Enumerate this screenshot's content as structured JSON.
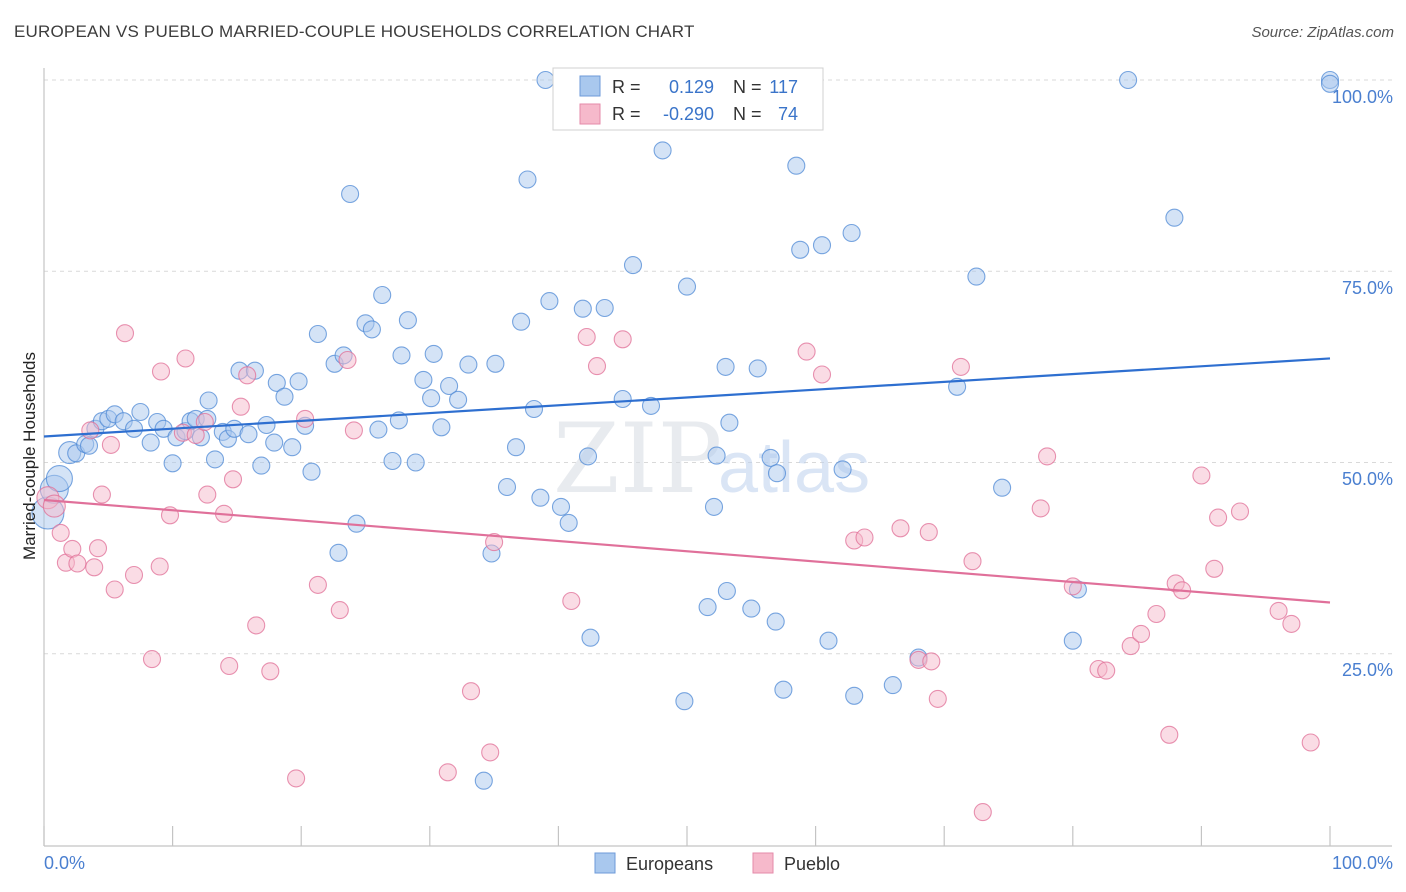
{
  "header": {
    "title": "EUROPEAN VS PUEBLO MARRIED-COUPLE HOUSEHOLDS CORRELATION CHART",
    "source": "Source: ZipAtlas.com"
  },
  "watermark": {
    "zip": "ZIP",
    "atlas": "atlas"
  },
  "legend": {
    "r_label": "R =",
    "n_label": "N =",
    "rows": [
      {
        "series": "Europeans",
        "r": "0.129",
        "n": "117",
        "color": "#a9c8ee"
      },
      {
        "series": "Pueblo",
        "r": "-0.290",
        "n": "74",
        "color": "#f6b9cb"
      }
    ]
  },
  "chart_data": {
    "type": "scatter",
    "title": "EUROPEAN VS PUEBLO MARRIED-COUPLE HOUSEHOLDS CORRELATION CHART",
    "xlabel": "",
    "ylabel": "Married-couple Households",
    "xlim": [
      0,
      100
    ],
    "ylim": [
      0,
      100
    ],
    "x_tick_labels": [
      "0.0%",
      "100.0%"
    ],
    "y_ticks": [
      25,
      50,
      75,
      100
    ],
    "y_tick_labels": [
      "25.0%",
      "50.0%",
      "75.0%",
      "100.0%"
    ],
    "grid": true,
    "legend_position": "bottom-center",
    "series": [
      {
        "name": "Europeans",
        "color": "#4f8ad6",
        "fill": "#a9c8ee",
        "trend": {
          "start": [
            0,
            53.4
          ],
          "end": [
            100,
            63.6
          ]
        },
        "points": [
          [
            0.3,
            43.4
          ],
          [
            0.8,
            46.5
          ],
          [
            1.2,
            47.9
          ],
          [
            2.0,
            51.3
          ],
          [
            2.5,
            51.2
          ],
          [
            3.2,
            52.4
          ],
          [
            3.5,
            52.2
          ],
          [
            4.0,
            54.4
          ],
          [
            4.5,
            55.4
          ],
          [
            5.0,
            55.7
          ],
          [
            5.5,
            56.3
          ],
          [
            6.2,
            55.4
          ],
          [
            7.0,
            54.4
          ],
          [
            7.5,
            56.6
          ],
          [
            8.3,
            52.6
          ],
          [
            8.8,
            55.3
          ],
          [
            9.3,
            54.4
          ],
          [
            10.0,
            49.9
          ],
          [
            10.3,
            53.3
          ],
          [
            11.0,
            54.1
          ],
          [
            11.4,
            55.4
          ],
          [
            11.8,
            55.7
          ],
          [
            12.2,
            53.3
          ],
          [
            12.7,
            55.7
          ],
          [
            12.8,
            58.1
          ],
          [
            13.3,
            50.4
          ],
          [
            13.9,
            54.0
          ],
          [
            14.3,
            53.1
          ],
          [
            14.8,
            54.4
          ],
          [
            15.2,
            62.0
          ],
          [
            15.9,
            53.7
          ],
          [
            16.4,
            62.0
          ],
          [
            16.9,
            49.6
          ],
          [
            17.3,
            54.9
          ],
          [
            17.9,
            52.6
          ],
          [
            18.1,
            60.4
          ],
          [
            18.7,
            58.6
          ],
          [
            19.3,
            52.0
          ],
          [
            19.8,
            60.6
          ],
          [
            20.3,
            54.8
          ],
          [
            20.8,
            48.8
          ],
          [
            21.3,
            66.8
          ],
          [
            22.6,
            62.9
          ],
          [
            22.9,
            38.2
          ],
          [
            23.3,
            64.0
          ],
          [
            23.8,
            85.1
          ],
          [
            24.3,
            42.0
          ],
          [
            25.0,
            68.2
          ],
          [
            25.5,
            67.4
          ],
          [
            26.0,
            54.3
          ],
          [
            26.3,
            71.9
          ],
          [
            27.1,
            50.2
          ],
          [
            27.6,
            55.5
          ],
          [
            27.8,
            64.0
          ],
          [
            28.3,
            68.6
          ],
          [
            28.9,
            50.0
          ],
          [
            29.5,
            60.8
          ],
          [
            30.1,
            58.4
          ],
          [
            30.3,
            64.2
          ],
          [
            30.9,
            54.6
          ],
          [
            31.5,
            60.0
          ],
          [
            32.2,
            58.2
          ],
          [
            33.0,
            62.8
          ],
          [
            34.2,
            8.4
          ],
          [
            34.8,
            38.1
          ],
          [
            35.1,
            62.9
          ],
          [
            36.0,
            46.8
          ],
          [
            36.7,
            52.0
          ],
          [
            37.1,
            68.4
          ],
          [
            37.6,
            87.0
          ],
          [
            38.1,
            57.0
          ],
          [
            38.6,
            45.4
          ],
          [
            39.0,
            100.0
          ],
          [
            39.3,
            71.1
          ],
          [
            40.2,
            44.2
          ],
          [
            40.8,
            42.1
          ],
          [
            41.9,
            70.1
          ],
          [
            42.3,
            50.8
          ],
          [
            42.5,
            27.1
          ],
          [
            43.6,
            70.2
          ],
          [
            45.0,
            58.3
          ],
          [
            45.8,
            75.8
          ],
          [
            47.2,
            57.4
          ],
          [
            48.1,
            90.8
          ],
          [
            49.8,
            18.8
          ],
          [
            50.0,
            73.0
          ],
          [
            51.6,
            31.1
          ],
          [
            51.9,
            100.0
          ],
          [
            52.1,
            44.2
          ],
          [
            52.3,
            50.9
          ],
          [
            53.0,
            62.5
          ],
          [
            53.3,
            55.2
          ],
          [
            53.1,
            33.2
          ],
          [
            55.0,
            30.9
          ],
          [
            55.5,
            62.3
          ],
          [
            56.5,
            50.6
          ],
          [
            56.9,
            29.2
          ],
          [
            57.0,
            48.6
          ],
          [
            57.5,
            20.3
          ],
          [
            58.5,
            88.8
          ],
          [
            58.8,
            77.8
          ],
          [
            60.5,
            78.4
          ],
          [
            61.0,
            26.7
          ],
          [
            62.1,
            49.1
          ],
          [
            62.8,
            80.0
          ],
          [
            63.0,
            19.5
          ],
          [
            66.0,
            20.9
          ],
          [
            68.0,
            24.5
          ],
          [
            71.0,
            59.9
          ],
          [
            72.5,
            74.3
          ],
          [
            74.5,
            46.7
          ],
          [
            80.0,
            26.7
          ],
          [
            80.4,
            33.4
          ],
          [
            84.3,
            100.0
          ],
          [
            87.9,
            82.0
          ],
          [
            100.0,
            100.0
          ],
          [
            100.0,
            99.5
          ]
        ]
      },
      {
        "name": "Pueblo",
        "color": "#e06f97",
        "fill": "#f6b9cb",
        "trend": {
          "start": [
            0,
            45.1
          ],
          "end": [
            100,
            31.7
          ]
        },
        "points": [
          [
            0.3,
            45.4
          ],
          [
            0.8,
            44.3
          ],
          [
            1.3,
            40.8
          ],
          [
            1.7,
            36.9
          ],
          [
            2.2,
            38.7
          ],
          [
            2.6,
            36.8
          ],
          [
            3.6,
            54.2
          ],
          [
            3.9,
            36.3
          ],
          [
            4.2,
            38.8
          ],
          [
            4.5,
            45.8
          ],
          [
            5.2,
            52.3
          ],
          [
            5.5,
            33.4
          ],
          [
            6.3,
            66.9
          ],
          [
            7.0,
            35.3
          ],
          [
            8.4,
            24.3
          ],
          [
            9.0,
            36.4
          ],
          [
            9.1,
            61.9
          ],
          [
            9.8,
            43.1
          ],
          [
            10.8,
            53.9
          ],
          [
            11.0,
            63.6
          ],
          [
            11.8,
            53.6
          ],
          [
            12.5,
            55.3
          ],
          [
            12.7,
            45.8
          ],
          [
            14.0,
            43.3
          ],
          [
            14.4,
            23.4
          ],
          [
            14.7,
            47.8
          ],
          [
            15.3,
            57.3
          ],
          [
            15.8,
            61.4
          ],
          [
            16.5,
            28.7
          ],
          [
            17.6,
            22.7
          ],
          [
            19.6,
            8.7
          ],
          [
            20.3,
            55.7
          ],
          [
            21.3,
            34.0
          ],
          [
            23.0,
            30.7
          ],
          [
            23.6,
            63.4
          ],
          [
            24.1,
            54.2
          ],
          [
            31.4,
            9.5
          ],
          [
            33.2,
            20.1
          ],
          [
            34.7,
            12.1
          ],
          [
            35.0,
            39.6
          ],
          [
            41.0,
            31.9
          ],
          [
            42.2,
            66.4
          ],
          [
            43.0,
            62.6
          ],
          [
            45.0,
            66.1
          ],
          [
            59.3,
            64.5
          ],
          [
            60.5,
            61.5
          ],
          [
            63.0,
            39.8
          ],
          [
            63.8,
            40.2
          ],
          [
            66.6,
            41.4
          ],
          [
            68.0,
            24.2
          ],
          [
            68.8,
            40.9
          ],
          [
            69.0,
            24.0
          ],
          [
            69.5,
            19.1
          ],
          [
            71.3,
            62.5
          ],
          [
            72.2,
            37.1
          ],
          [
            73.0,
            4.3
          ],
          [
            77.5,
            44.0
          ],
          [
            78.0,
            50.8
          ],
          [
            80.0,
            33.8
          ],
          [
            82.0,
            23.0
          ],
          [
            82.6,
            22.8
          ],
          [
            84.5,
            26.0
          ],
          [
            85.3,
            27.6
          ],
          [
            86.5,
            30.2
          ],
          [
            87.5,
            14.4
          ],
          [
            88.0,
            34.2
          ],
          [
            88.5,
            33.3
          ],
          [
            90.0,
            48.3
          ],
          [
            91.0,
            36.1
          ],
          [
            91.3,
            42.8
          ],
          [
            93.0,
            43.6
          ],
          [
            96.0,
            30.6
          ],
          [
            97.0,
            28.9
          ],
          [
            98.5,
            13.4
          ]
        ]
      }
    ]
  }
}
